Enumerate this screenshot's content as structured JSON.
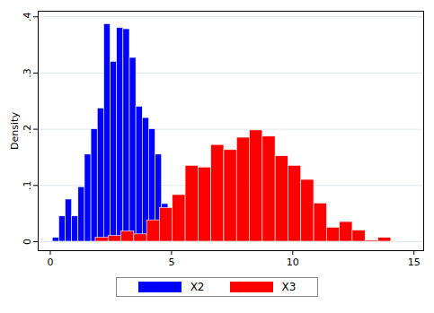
{
  "chart_data": {
    "type": "histogram",
    "y_label": "Density",
    "xlim": [
      -0.5,
      15.4
    ],
    "xticks": [
      0,
      5,
      10,
      15
    ],
    "ylim": [
      -0.016,
      0.41
    ],
    "yticks": [
      0,
      {
        "value": 0.1,
        "label": ".1"
      },
      {
        "value": 0.2,
        "label": ".2"
      },
      {
        "value": 0.3,
        "label": ".3"
      },
      {
        "value": 0.4,
        "label": ".4"
      }
    ],
    "grid": true,
    "legend": "bottom",
    "series": [
      {
        "name": "X2",
        "color": "#0000ff",
        "bins": [
          0.1,
          0.365,
          0.63,
          0.895,
          1.16,
          1.425,
          1.69,
          1.955,
          2.22,
          2.485,
          2.75,
          3.015,
          3.28,
          3.545,
          3.81,
          4.075,
          4.34,
          4.605,
          4.87
        ],
        "values": [
          0.007,
          0.045,
          0.075,
          0.045,
          0.097,
          0.155,
          0.2,
          0.237,
          0.387,
          0.32,
          0.38,
          0.378,
          0.327,
          0.24,
          0.22,
          0.2,
          0.155,
          0.067
        ]
      },
      {
        "name": "X3",
        "color": "#ff0000",
        "bins": [
          1.87,
          2.4,
          2.93,
          3.46,
          3.99,
          4.52,
          5.05,
          5.58,
          6.11,
          6.64,
          7.17,
          7.7,
          8.23,
          8.76,
          9.29,
          9.82,
          10.35,
          10.88,
          11.41,
          11.94,
          12.47,
          13.0,
          13.53,
          14.06
        ],
        "values": [
          0.007,
          0.01,
          0.018,
          0.013,
          0.038,
          0.06,
          0.083,
          0.135,
          0.132,
          0.172,
          0.163,
          0.185,
          0.198,
          0.187,
          0.152,
          0.135,
          0.11,
          0.068,
          0.025,
          0.035,
          0.02,
          0.002,
          0.007
        ]
      }
    ]
  }
}
